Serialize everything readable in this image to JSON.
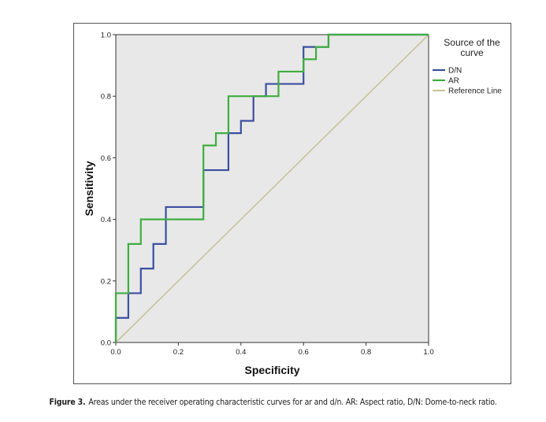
{
  "chart_data": {
    "type": "line",
    "xlabel": "Specificity",
    "ylabel": "Sensitivity",
    "xlim": [
      0,
      1
    ],
    "ylim": [
      0,
      1
    ],
    "x_ticks": [
      "0.0",
      "0.2",
      "0.4",
      "0.6",
      "0.8",
      "1.0"
    ],
    "y_ticks": [
      "0.0",
      "0.2",
      "0.4",
      "0.6",
      "0.8",
      "1.0"
    ],
    "legend_title": "Source of the curve",
    "legend_title_lines": [
      "Source of the",
      "curve"
    ],
    "legend_position": "right",
    "plot_background": "#e8e8e8",
    "series": [
      {
        "name": "D/N",
        "color": "#3b4fa0",
        "x": [
          0,
          0,
          0.04,
          0.04,
          0.08,
          0.08,
          0.12,
          0.12,
          0.16,
          0.16,
          0.28,
          0.28,
          0.36,
          0.36,
          0.4,
          0.4,
          0.44,
          0.44,
          0.48,
          0.48,
          0.6,
          0.6,
          0.64,
          0.64,
          0.68,
          0.68,
          1.0
        ],
        "y": [
          0,
          0.08,
          0.08,
          0.16,
          0.16,
          0.24,
          0.24,
          0.32,
          0.32,
          0.44,
          0.44,
          0.56,
          0.56,
          0.68,
          0.68,
          0.72,
          0.72,
          0.8,
          0.8,
          0.84,
          0.84,
          0.96,
          0.96,
          0.96,
          0.96,
          1.0,
          1.0
        ]
      },
      {
        "name": "AR",
        "color": "#3fae3f",
        "x": [
          0,
          0,
          0.04,
          0.04,
          0.08,
          0.08,
          0.28,
          0.28,
          0.32,
          0.32,
          0.36,
          0.36,
          0.52,
          0.52,
          0.6,
          0.6,
          0.64,
          0.64,
          0.68,
          0.68,
          1.0
        ],
        "y": [
          0,
          0.16,
          0.16,
          0.32,
          0.32,
          0.4,
          0.4,
          0.64,
          0.64,
          0.68,
          0.68,
          0.8,
          0.8,
          0.88,
          0.88,
          0.92,
          0.92,
          0.96,
          0.96,
          1.0,
          1.0
        ]
      },
      {
        "name": "Reference Line",
        "color": "#c8c49a",
        "x": [
          0,
          1
        ],
        "y": [
          0,
          1
        ]
      }
    ]
  },
  "caption": {
    "label": "Figure 3.",
    "text": "Areas under the receiver operating characteristic curves for ar and d/n. AR: Aspect ratio, D/N: Dome-to-neck ratio."
  }
}
